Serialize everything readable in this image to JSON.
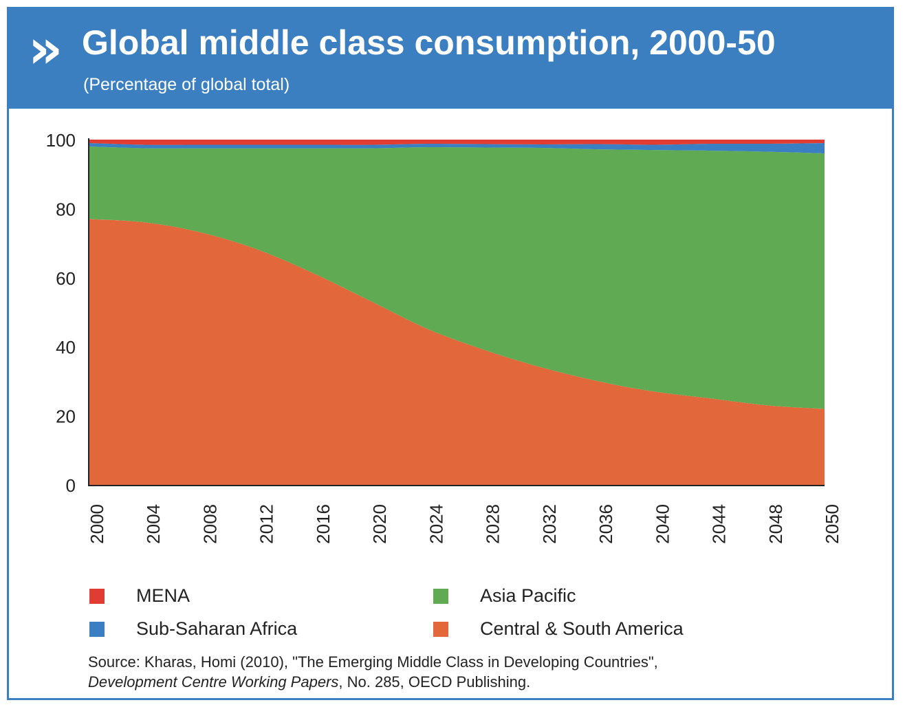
{
  "logo_glyph": "»",
  "header": {
    "title": "Global middle class consumption, 2000-50",
    "subtitle": "(Percentage of global total)"
  },
  "chart_data": {
    "type": "area",
    "stacked": true,
    "title": "Global middle class consumption, 2000-50",
    "subtitle": "(Percentage of global total)",
    "xlabel": "",
    "ylabel": "",
    "ylim": [
      0,
      100
    ],
    "yticks": [
      "0",
      "20",
      "40",
      "60",
      "80",
      "100"
    ],
    "categories": [
      "2000",
      "2004",
      "2008",
      "2012",
      "2016",
      "2020",
      "2024",
      "2028",
      "2032",
      "2036",
      "2040",
      "2044",
      "2048",
      "2050"
    ],
    "grid": false,
    "legend_position": "bottom",
    "series": [
      {
        "name": "Central & South America",
        "color": "#e2673a",
        "values": [
          77,
          76,
          73,
          68,
          61,
          53,
          45,
          39,
          34,
          30,
          27,
          25,
          23,
          22
        ]
      },
      {
        "name": "Asia Pacific",
        "color": "#5faa52",
        "values": [
          21,
          21.5,
          24.5,
          29.5,
          36.5,
          44.5,
          52.8,
          58.7,
          63.6,
          67.2,
          70,
          71.8,
          73.5,
          74
        ]
      },
      {
        "name": "Sub-Saharan Africa",
        "color": "#3a7fc2",
        "values": [
          1,
          1,
          1,
          1,
          1,
          1,
          1,
          1,
          1,
          1.5,
          1.5,
          2,
          2.3,
          3
        ]
      },
      {
        "name": "MENA",
        "color": "#e03c31",
        "values": [
          1,
          1.5,
          1.5,
          1.5,
          1.5,
          1.5,
          1.2,
          1.3,
          1.4,
          1.3,
          1.5,
          1.2,
          1.2,
          1
        ]
      }
    ]
  },
  "legend": [
    {
      "label": "MENA",
      "color": "#e03c31"
    },
    {
      "label": "Asia Pacific",
      "color": "#5faa52"
    },
    {
      "label": "Sub-Saharan Africa",
      "color": "#3a7fc2"
    },
    {
      "label": "Central & South America",
      "color": "#e2673a"
    }
  ],
  "source": {
    "line1": "Source: Kharas, Homi (2010), \"The Emerging Middle Class in Developing Countries\",",
    "italic": "Development Centre Working Papers",
    "line2_rest": ", No. 285, OECD Publishing."
  }
}
